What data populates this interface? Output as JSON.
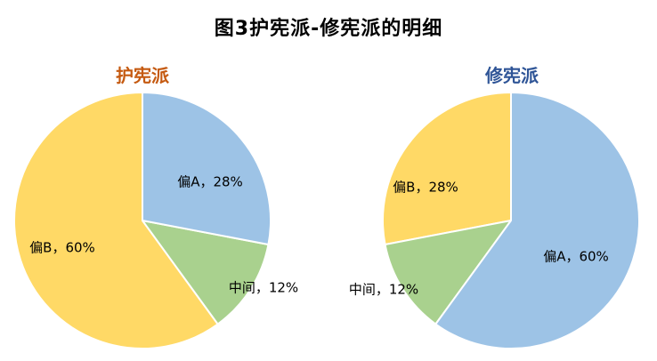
{
  "main_title": "图3护宪派-修宪派的明细",
  "colors": {
    "left_title": "#C55A11",
    "right_title": "#2F5597",
    "slice_border": "#FFFFFF"
  },
  "chart_data": [
    {
      "type": "pie",
      "title": "护宪派",
      "slices": [
        {
          "name": "偏A",
          "value": 28,
          "label": "偏A，28%",
          "color": "#9DC3E6"
        },
        {
          "name": "中间",
          "value": 12,
          "label": "中间，12%",
          "color": "#A9D18E"
        },
        {
          "name": "偏B",
          "value": 60,
          "label": "偏B，60%",
          "color": "#FFD966"
        }
      ]
    },
    {
      "type": "pie",
      "title": "修宪派",
      "slices": [
        {
          "name": "偏A",
          "value": 60,
          "label": "偏A，60%",
          "color": "#9DC3E6"
        },
        {
          "name": "中间",
          "value": 12,
          "label": "中间，12%",
          "color": "#A9D18E"
        },
        {
          "name": "偏B",
          "value": 28,
          "label": "偏B，28%",
          "color": "#FFD966"
        }
      ]
    }
  ]
}
